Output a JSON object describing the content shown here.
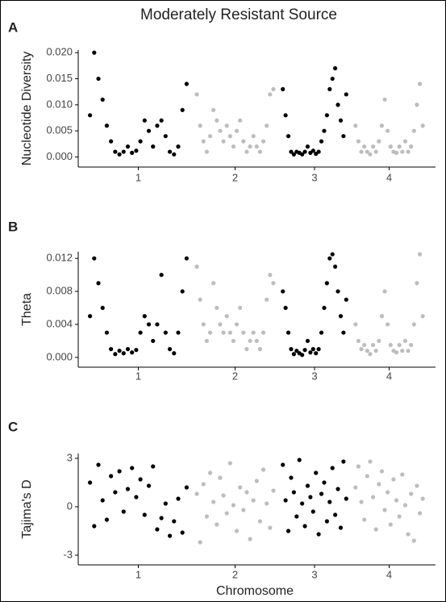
{
  "chart_data": [
    {
      "type": "scatter",
      "panel": "A",
      "title": "Moderately Resistant Source",
      "y_label": "Nucleotide Diversity",
      "ylim": [
        -0.001,
        0.0205
      ],
      "yticks": [
        {
          "value": 0,
          "label": "0.000"
        },
        {
          "value": 0.005,
          "label": "0.005"
        },
        {
          "value": 0.01,
          "label": "0.010"
        },
        {
          "value": 0.015,
          "label": "0.015"
        },
        {
          "value": 0.02,
          "label": "0.020"
        }
      ],
      "series": [
        {
          "name": "1",
          "color": "#000000",
          "values": [
            0.008,
            0.02,
            0.015,
            0.011,
            0.006,
            0.003,
            0.001,
            0.0005,
            0.001,
            0.002,
            0.0008,
            0.0012,
            0.003,
            0.007,
            0.005,
            0.002,
            0.006,
            0.007,
            0.004,
            0.001,
            0.0005,
            0.002,
            0.009,
            0.014
          ]
        },
        {
          "name": "2",
          "color": "#bdbdbd",
          "values": [
            0.012,
            0.006,
            0.003,
            0.001,
            0.004,
            0.009,
            0.007,
            0.005,
            0.003,
            0.006,
            0.004,
            0.002,
            0.005,
            0.007,
            0.003,
            0.001,
            0.002,
            0.004,
            0.002,
            0.001,
            0.003,
            0.006,
            0.012,
            0.013
          ]
        },
        {
          "name": "3",
          "color": "#000000",
          "values": [
            0.013,
            0.008,
            0.004,
            0.001,
            0.0005,
            0.001,
            0.0008,
            0.0005,
            0.001,
            0.002,
            0.0008,
            0.0012,
            0.0006,
            0.001,
            0.003,
            0.005,
            0.008,
            0.013,
            0.015,
            0.017,
            0.01,
            0.007,
            0.004,
            0.012
          ]
        },
        {
          "name": "4",
          "color": "#bdbdbd",
          "values": [
            0.006,
            0.003,
            0.001,
            0.002,
            0.001,
            0.0005,
            0.002,
            0.001,
            0.003,
            0.006,
            0.011,
            0.005,
            0.002,
            0.001,
            0.0008,
            0.002,
            0.001,
            0.003,
            0.001,
            0.002,
            0.005,
            0.01,
            0.014,
            0.006
          ]
        }
      ]
    },
    {
      "type": "scatter",
      "panel": "B",
      "y_label": "Theta",
      "ylim": [
        -0.0006,
        0.0128
      ],
      "yticks": [
        {
          "value": 0,
          "label": "0.000"
        },
        {
          "value": 0.004,
          "label": "0.004"
        },
        {
          "value": 0.008,
          "label": "0.008"
        },
        {
          "value": 0.012,
          "label": "0.012"
        }
      ],
      "series": [
        {
          "name": "1",
          "color": "#000000",
          "values": [
            0.005,
            0.012,
            0.009,
            0.006,
            0.003,
            0.001,
            0.0004,
            0.0008,
            0.0005,
            0.001,
            0.0006,
            0.0009,
            0.003,
            0.005,
            0.004,
            0.002,
            0.004,
            0.01,
            0.003,
            0.001,
            0.0005,
            0.003,
            0.008,
            0.012
          ]
        },
        {
          "name": "2",
          "color": "#bdbdbd",
          "values": [
            0.011,
            0.007,
            0.004,
            0.002,
            0.003,
            0.009,
            0.006,
            0.004,
            0.003,
            0.005,
            0.003,
            0.002,
            0.004,
            0.006,
            0.003,
            0.001,
            0.002,
            0.003,
            0.002,
            0.001,
            0.003,
            0.007,
            0.01,
            0.009
          ]
        },
        {
          "name": "3",
          "color": "#000000",
          "values": [
            0.008,
            0.006,
            0.003,
            0.001,
            0.0004,
            0.0008,
            0.0005,
            0.0003,
            0.0009,
            0.002,
            0.0006,
            0.001,
            0.0005,
            0.001,
            0.003,
            0.006,
            0.009,
            0.012,
            0.0125,
            0.011,
            0.008,
            0.005,
            0.003,
            0.007
          ]
        },
        {
          "name": "4",
          "color": "#bdbdbd",
          "values": [
            0.004,
            0.002,
            0.001,
            0.0015,
            0.0008,
            0.0004,
            0.0015,
            0.0008,
            0.002,
            0.005,
            0.008,
            0.004,
            0.0015,
            0.0008,
            0.0006,
            0.0015,
            0.0008,
            0.002,
            0.0008,
            0.0015,
            0.004,
            0.009,
            0.0125,
            0.005
          ]
        }
      ]
    },
    {
      "type": "scatter",
      "panel": "C",
      "y_label": "Tajima's D",
      "x_label": "Chromosome",
      "ylim": [
        -3.3,
        3.3
      ],
      "yticks": [
        -3,
        0,
        3
      ],
      "series": [
        {
          "name": "1",
          "color": "#000000",
          "values": [
            1.5,
            -1.2,
            2.6,
            0.4,
            -0.8,
            1.9,
            0.9,
            2.2,
            -0.3,
            1.1,
            2.4,
            0.6,
            1.7,
            -0.5,
            1.3,
            2.5,
            -1.4,
            -0.7,
            0.2,
            -1.8,
            -0.9,
            0.5,
            -1.6,
            1.2
          ]
        },
        {
          "name": "2",
          "color": "#bdbdbd",
          "values": [
            0.8,
            -2.2,
            1.4,
            -0.6,
            2.1,
            0.3,
            -1.1,
            1.8,
            0.7,
            -0.4,
            2.7,
            0.1,
            -1.5,
            1.2,
            -0.2,
            0.9,
            -2.0,
            0.4,
            1.6,
            -0.9,
            2.3,
            0.2,
            -1.3,
            1.0
          ]
        },
        {
          "name": "3",
          "color": "#000000",
          "values": [
            2.6,
            0.4,
            -1.5,
            1.8,
            0.9,
            -0.6,
            2.9,
            0.2,
            -1.2,
            1.3,
            0.6,
            -0.3,
            2.1,
            -1.7,
            0.8,
            1.5,
            -0.9,
            0.3,
            2.4,
            -0.5,
            1.1,
            -1.3,
            2.8,
            0.5
          ]
        },
        {
          "name": "4",
          "color": "#bdbdbd",
          "values": [
            1.2,
            2.5,
            0.3,
            -0.8,
            1.9,
            2.8,
            0.6,
            -1.4,
            1.4,
            2.2,
            -0.2,
            0.9,
            -1.1,
            1.7,
            0.4,
            -0.6,
            2.0,
            0.1,
            -1.7,
            0.8,
            -2.1,
            1.3,
            -0.4,
            0.5
          ]
        }
      ]
    }
  ]
}
